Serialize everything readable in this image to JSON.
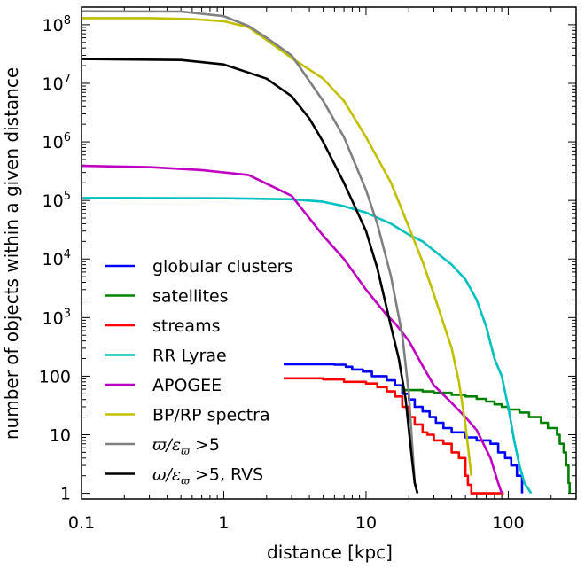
{
  "chart_data": {
    "type": "line",
    "xscale": "log",
    "yscale": "log",
    "xlabel": "distance [kpc]",
    "ylabel": "number of objects within a given distance",
    "xlim": [
      0.1,
      300
    ],
    "ylim": [
      0.8,
      200000000
    ],
    "legend_position": "lower-left",
    "x_ticks": [
      {
        "value": 0.1,
        "label": "0.1"
      },
      {
        "value": 1,
        "label": "1"
      },
      {
        "value": 10,
        "label": "10"
      },
      {
        "value": 100,
        "label": "100"
      }
    ],
    "y_ticks": [
      {
        "value": 1,
        "label": "1",
        "exp": ""
      },
      {
        "value": 10,
        "label": "10",
        "exp": ""
      },
      {
        "value": 100,
        "label": "100",
        "exp": ""
      },
      {
        "value": 1000,
        "label": "10",
        "exp": "3"
      },
      {
        "value": 10000,
        "label": "10",
        "exp": "4"
      },
      {
        "value": 100000,
        "label": "10",
        "exp": "5"
      },
      {
        "value": 1000000,
        "label": "10",
        "exp": "6"
      },
      {
        "value": 10000000,
        "label": "10",
        "exp": "7"
      },
      {
        "value": 100000000,
        "label": "10",
        "exp": "8"
      }
    ],
    "series": [
      {
        "name": "globular clusters",
        "color": "#0000ff",
        "step": true,
        "points": [
          [
            1.8,
            160
          ],
          [
            6,
            157
          ],
          [
            7.2,
            145
          ],
          [
            8,
            130
          ],
          [
            9.5,
            120
          ],
          [
            11,
            100
          ],
          [
            14,
            85
          ],
          [
            16,
            70
          ],
          [
            18,
            50
          ],
          [
            20,
            40
          ],
          [
            22,
            30
          ],
          [
            25,
            25
          ],
          [
            28,
            20
          ],
          [
            31,
            16
          ],
          [
            35,
            13
          ],
          [
            40,
            11
          ],
          [
            50,
            9
          ],
          [
            60,
            8
          ],
          [
            75,
            7
          ],
          [
            85,
            5
          ],
          [
            95,
            4
          ],
          [
            105,
            3
          ],
          [
            115,
            2
          ],
          [
            125,
            1.3
          ],
          [
            125,
            1
          ]
        ]
      },
      {
        "name": "satellites",
        "color": "#008000",
        "step": true,
        "points": [
          [
            18,
            58
          ],
          [
            25,
            55
          ],
          [
            30,
            52
          ],
          [
            40,
            48
          ],
          [
            50,
            45
          ],
          [
            60,
            41
          ],
          [
            70,
            37
          ],
          [
            80,
            33
          ],
          [
            90,
            30
          ],
          [
            100,
            27
          ],
          [
            120,
            24
          ],
          [
            140,
            20
          ],
          [
            170,
            16
          ],
          [
            190,
            13
          ],
          [
            220,
            10
          ],
          [
            230,
            7
          ],
          [
            245,
            5
          ],
          [
            255,
            3
          ],
          [
            265,
            1.5
          ],
          [
            270,
            1
          ]
        ]
      },
      {
        "name": "streams",
        "color": "#ff0000",
        "step": true,
        "points": [
          [
            1.8,
            92
          ],
          [
            5,
            88
          ],
          [
            7,
            80
          ],
          [
            10,
            75
          ],
          [
            12,
            65
          ],
          [
            14,
            55
          ],
          [
            16,
            45
          ],
          [
            18,
            30
          ],
          [
            20,
            20
          ],
          [
            22,
            15
          ],
          [
            25,
            11
          ],
          [
            27,
            10
          ],
          [
            30,
            8
          ],
          [
            35,
            7
          ],
          [
            40,
            5
          ],
          [
            45,
            4
          ],
          [
            50,
            2
          ],
          [
            52,
            1.4
          ],
          [
            55,
            1
          ],
          [
            93,
            1
          ]
        ]
      },
      {
        "name": "RR Lyrae",
        "color": "#00c0c0",
        "step": false,
        "points": [
          [
            0.1,
            110000
          ],
          [
            1,
            109000
          ],
          [
            3,
            105000
          ],
          [
            5,
            95000
          ],
          [
            7,
            80000
          ],
          [
            10,
            62000
          ],
          [
            15,
            40000
          ],
          [
            20,
            26000
          ],
          [
            25,
            20000
          ],
          [
            30,
            14000
          ],
          [
            40,
            8000
          ],
          [
            50,
            4500
          ],
          [
            60,
            2000
          ],
          [
            70,
            700
          ],
          [
            80,
            200
          ],
          [
            90,
            100
          ],
          [
            100,
            30
          ],
          [
            110,
            8
          ],
          [
            120,
            3
          ],
          [
            130,
            1.5
          ],
          [
            145,
            1
          ]
        ]
      },
      {
        "name": "APOGEE",
        "color": "#c000c0",
        "step": false,
        "points": [
          [
            0.1,
            390000
          ],
          [
            0.3,
            370000
          ],
          [
            0.7,
            330000
          ],
          [
            1.5,
            270000
          ],
          [
            3,
            120000
          ],
          [
            5,
            25000
          ],
          [
            7,
            10000
          ],
          [
            10,
            3000
          ],
          [
            14,
            1100
          ],
          [
            16,
            800
          ],
          [
            20,
            400
          ],
          [
            25,
            150
          ],
          [
            30,
            70
          ],
          [
            40,
            35
          ],
          [
            50,
            20
          ],
          [
            60,
            12
          ],
          [
            75,
            4
          ],
          [
            85,
            1.5
          ],
          [
            90,
            1
          ]
        ]
      },
      {
        "name": "BP/RP spectra",
        "color": "#c0c000",
        "step": false,
        "points": [
          [
            0.1,
            130000000
          ],
          [
            0.3,
            130000000
          ],
          [
            0.6,
            125000000
          ],
          [
            1,
            115000000
          ],
          [
            1.5,
            90000000
          ],
          [
            2,
            55000000
          ],
          [
            3,
            27000000
          ],
          [
            5,
            12000000
          ],
          [
            7,
            5000000
          ],
          [
            10,
            1200000
          ],
          [
            15,
            200000
          ],
          [
            20,
            35000
          ],
          [
            25,
            9000
          ],
          [
            30,
            2500
          ],
          [
            40,
            300
          ],
          [
            45,
            80
          ],
          [
            50,
            15
          ],
          [
            55,
            2
          ]
        ]
      },
      {
        "name": "ϖ/ε_ϖ > 5",
        "color": "#808080",
        "step": false,
        "points": [
          [
            0.1,
            170000000
          ],
          [
            0.5,
            168000000
          ],
          [
            1,
            140000000
          ],
          [
            1.5,
            95000000
          ],
          [
            2,
            60000000
          ],
          [
            3,
            30000000
          ],
          [
            5,
            5000000
          ],
          [
            7,
            1200000
          ],
          [
            10,
            150000
          ],
          [
            12,
            40000
          ],
          [
            15,
            5000
          ],
          [
            18,
            500
          ],
          [
            20,
            50
          ],
          [
            21,
            8
          ],
          [
            22,
            1.5
          ],
          [
            23,
            1
          ]
        ]
      },
      {
        "name": "ϖ/ε_ϖ > 5, RVS",
        "color": "#000000",
        "step": false,
        "points": [
          [
            0.1,
            26000000
          ],
          [
            0.5,
            25000000
          ],
          [
            1,
            21000000
          ],
          [
            2,
            12000000
          ],
          [
            3,
            6000000
          ],
          [
            4,
            2500000
          ],
          [
            5,
            1000000
          ],
          [
            7,
            200000
          ],
          [
            10,
            30000
          ],
          [
            12,
            7000
          ],
          [
            15,
            700
          ],
          [
            17,
            200
          ],
          [
            19,
            40
          ],
          [
            20,
            12
          ],
          [
            21,
            4
          ],
          [
            22,
            1.5
          ],
          [
            23,
            1
          ]
        ]
      }
    ],
    "legend": [
      {
        "label": "globular clusters",
        "math": false,
        "color": "#0000ff"
      },
      {
        "label": "satellites",
        "math": false,
        "color": "#008000"
      },
      {
        "label": "streams",
        "math": false,
        "color": "#ff0000"
      },
      {
        "label": "RR Lyrae",
        "math": false,
        "color": "#00c0c0"
      },
      {
        "label": "APOGEE",
        "math": false,
        "color": "#c000c0"
      },
      {
        "label": "BP/RP spectra",
        "math": false,
        "color": "#c0c000"
      },
      {
        "label": "ϖ/ε",
        "sub": "ϖ",
        "rest": " >5",
        "math": true,
        "color": "#808080"
      },
      {
        "label": "ϖ/ε",
        "sub": "ϖ",
        "rest": " >5, RVS",
        "math": true,
        "color": "#000000"
      }
    ]
  }
}
